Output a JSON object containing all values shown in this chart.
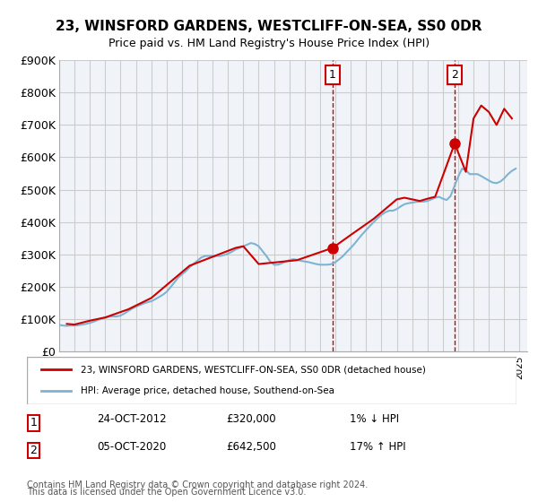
{
  "title": "23, WINSFORD GARDENS, WESTCLIFF-ON-SEA, SS0 0DR",
  "subtitle": "Price paid vs. HM Land Registry's House Price Index (HPI)",
  "ylabel_ticks": [
    "£0",
    "£100K",
    "£200K",
    "£300K",
    "£400K",
    "£500K",
    "£600K",
    "£700K",
    "£800K",
    "£900K"
  ],
  "ytick_values": [
    0,
    100000,
    200000,
    300000,
    400000,
    500000,
    600000,
    700000,
    800000,
    900000
  ],
  "ylim": [
    0,
    900000
  ],
  "xlim_start": 1995.0,
  "xlim_end": 2025.5,
  "legend_line1": "23, WINSFORD GARDENS, WESTCLIFF-ON-SEA, SS0 0DR (detached house)",
  "legend_line2": "HPI: Average price, detached house, Southend-on-Sea",
  "annotation1_label": "1",
  "annotation1_date": "24-OCT-2012",
  "annotation1_price": "£320,000",
  "annotation1_hpi": "1% ↓ HPI",
  "annotation2_label": "2",
  "annotation2_date": "05-OCT-2020",
  "annotation2_price": "£642,500",
  "annotation2_hpi": "17% ↑ HPI",
  "footer1": "Contains HM Land Registry data © Crown copyright and database right 2024.",
  "footer2": "This data is licensed under the Open Government Licence v3.0.",
  "red_color": "#cc0000",
  "blue_color": "#7fb3d3",
  "vline_color": "#cc0000",
  "grid_color": "#cccccc",
  "bg_color": "#f0f4f8",
  "plot_bg": "#f0f4f8",
  "marker1_x": 2012.82,
  "marker1_y": 320000,
  "marker2_x": 2020.77,
  "marker2_y": 642500,
  "vline1_x": 2012.82,
  "vline2_x": 2020.77,
  "hpi_data": {
    "years": [
      1995.0,
      1995.25,
      1995.5,
      1995.75,
      1996.0,
      1996.25,
      1996.5,
      1996.75,
      1997.0,
      1997.25,
      1997.5,
      1997.75,
      1998.0,
      1998.25,
      1998.5,
      1998.75,
      1999.0,
      1999.25,
      1999.5,
      1999.75,
      2000.0,
      2000.25,
      2000.5,
      2000.75,
      2001.0,
      2001.25,
      2001.5,
      2001.75,
      2002.0,
      2002.25,
      2002.5,
      2002.75,
      2003.0,
      2003.25,
      2003.5,
      2003.75,
      2004.0,
      2004.25,
      2004.5,
      2004.75,
      2005.0,
      2005.25,
      2005.5,
      2005.75,
      2006.0,
      2006.25,
      2006.5,
      2006.75,
      2007.0,
      2007.25,
      2007.5,
      2007.75,
      2008.0,
      2008.25,
      2008.5,
      2008.75,
      2009.0,
      2009.25,
      2009.5,
      2009.75,
      2010.0,
      2010.25,
      2010.5,
      2010.75,
      2011.0,
      2011.25,
      2011.5,
      2011.75,
      2012.0,
      2012.25,
      2012.5,
      2012.75,
      2013.0,
      2013.25,
      2013.5,
      2013.75,
      2014.0,
      2014.25,
      2014.5,
      2014.75,
      2015.0,
      2015.25,
      2015.5,
      2015.75,
      2016.0,
      2016.25,
      2016.5,
      2016.75,
      2017.0,
      2017.25,
      2017.5,
      2017.75,
      2018.0,
      2018.25,
      2018.5,
      2018.75,
      2019.0,
      2019.25,
      2019.5,
      2019.75,
      2020.0,
      2020.25,
      2020.5,
      2020.75,
      2021.0,
      2021.25,
      2021.5,
      2021.75,
      2022.0,
      2022.25,
      2022.5,
      2022.75,
      2023.0,
      2023.25,
      2023.5,
      2023.75,
      2024.0,
      2024.25,
      2024.5,
      2024.75
    ],
    "values": [
      82000,
      80000,
      79000,
      80000,
      80000,
      81000,
      83000,
      85000,
      88000,
      92000,
      97000,
      101000,
      104000,
      107000,
      108000,
      108000,
      111000,
      117000,
      125000,
      132000,
      138000,
      143000,
      148000,
      152000,
      155000,
      161000,
      168000,
      175000,
      184000,
      198000,
      213000,
      228000,
      238000,
      248000,
      260000,
      270000,
      280000,
      290000,
      295000,
      295000,
      295000,
      295000,
      295000,
      298000,
      302000,
      308000,
      315000,
      320000,
      325000,
      330000,
      335000,
      332000,
      325000,
      310000,
      295000,
      278000,
      268000,
      268000,
      272000,
      278000,
      282000,
      285000,
      283000,
      280000,
      278000,
      276000,
      273000,
      270000,
      268000,
      268000,
      268000,
      270000,
      276000,
      285000,
      295000,
      308000,
      320000,
      333000,
      348000,
      362000,
      375000,
      388000,
      400000,
      412000,
      422000,
      430000,
      435000,
      435000,
      440000,
      448000,
      455000,
      458000,
      460000,
      462000,
      463000,
      463000,
      465000,
      470000,
      475000,
      478000,
      472000,
      468000,
      480000,
      510000,
      540000,
      565000,
      560000,
      548000,
      548000,
      548000,
      542000,
      535000,
      528000,
      522000,
      520000,
      525000,
      535000,
      548000,
      558000,
      565000
    ]
  },
  "price_data": {
    "years": [
      1995.5,
      1996.0,
      1997.0,
      1998.0,
      1999.5,
      2001.0,
      2003.5,
      2006.5,
      2007.0,
      2008.0,
      2010.5,
      2012.82,
      2014.0,
      2015.5,
      2017.0,
      2017.5,
      2018.5,
      2019.0,
      2019.5,
      2020.77,
      2021.5,
      2022.0,
      2022.5,
      2023.0,
      2023.5,
      2024.0,
      2024.5
    ],
    "values": [
      85000,
      83000,
      95000,
      105000,
      130000,
      165000,
      265000,
      320000,
      325000,
      270000,
      282000,
      320000,
      360000,
      410000,
      470000,
      475000,
      465000,
      472000,
      478000,
      642500,
      555000,
      720000,
      760000,
      740000,
      700000,
      750000,
      720000
    ]
  }
}
